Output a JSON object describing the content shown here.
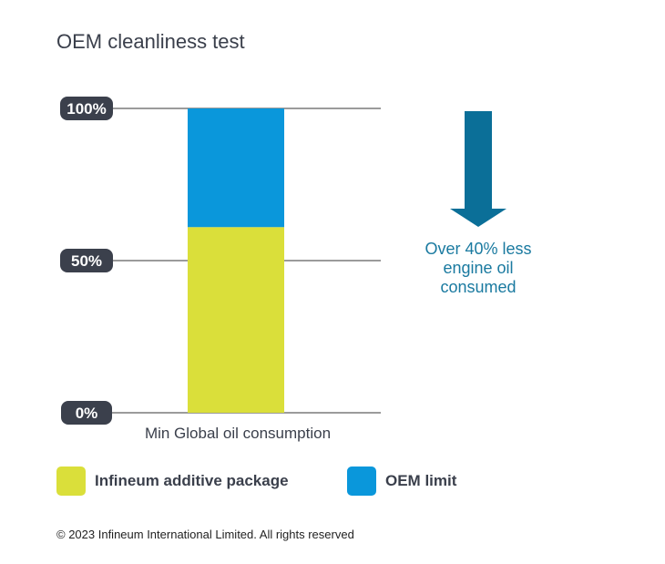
{
  "title": "OEM cleanliness test",
  "note": "Over 40% less engine oil consumed",
  "copyright": "© 2023 Infineum International Limited. All rights reserved",
  "colors": {
    "infineum": "#dadf3a",
    "oem": "#0a97db",
    "arrow": "#0b6f98",
    "tick_badge": "#3b404c",
    "gridline": "#7a7a7a"
  },
  "legend": [
    {
      "name": "Infineum additive package",
      "color": "#dadf3a"
    },
    {
      "name": "OEM limit",
      "color": "#0a97db"
    }
  ],
  "chart_data": {
    "type": "bar",
    "stacked": true,
    "categories": [
      "Min Global oil consumption"
    ],
    "series": [
      {
        "name": "Infineum additive package",
        "values": [
          61
        ]
      },
      {
        "name": "OEM limit",
        "values": [
          39
        ]
      }
    ],
    "ylim": [
      0,
      100
    ],
    "yticks": [
      0,
      50,
      100
    ],
    "ytick_labels": [
      "0%",
      "50%",
      "100%"
    ],
    "grid": true,
    "legend_position": "bottom-left"
  }
}
